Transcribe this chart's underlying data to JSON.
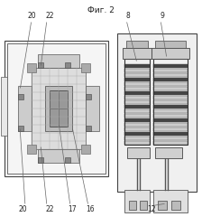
{
  "title": "Фиг. 2",
  "labels": {
    "20_top": "20",
    "22_top": "22",
    "17": "17",
    "16": "16",
    "12": "12",
    "20_bot": "20",
    "22_bot": "22",
    "8": "8",
    "9": "9"
  },
  "bg_color": "#ffffff",
  "line_color": "#555555",
  "drawing_color": "#888888",
  "fig_width": 2.24,
  "fig_height": 2.4,
  "dpi": 100
}
